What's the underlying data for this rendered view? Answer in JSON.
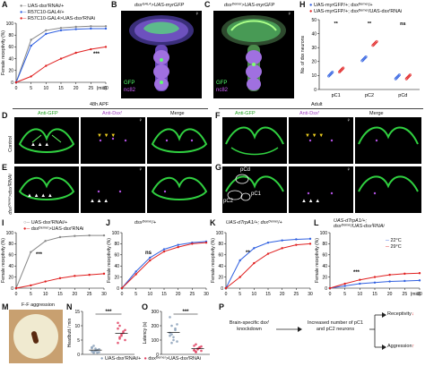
{
  "panels": {
    "A": {
      "letter": "A",
      "legend": [
        "UAS-dsxᶠRNAi/+",
        "R57C10-GAL4/+",
        "R57C10-GAL4>UAS-dsxᶠRNAi"
      ],
      "ylabel": "Female receptivity (%)",
      "xunit": "(min)",
      "sig": "***"
    },
    "B": {
      "letter": "B",
      "title": "dsxᴳᴬᴸ⁴>UAS-myrGFP",
      "sex": "♀",
      "ch1": "GFP",
      "ch2": "nc82"
    },
    "C": {
      "letter": "C",
      "title": "dsxᴰᵉᵐᵉʳ>UAS-myrGFP",
      "sex": "♀",
      "ch1": "GFP",
      "ch2": "nc82"
    },
    "H": {
      "letter": "H",
      "legend": [
        "UAS-myrGFP/+; dsxᴰᵉᵐᵉʳ/+",
        "UAS-myrGFP/+; dsxᴰᵉᵐᵉʳ/UAS-dsxᶠRNAi"
      ],
      "ylabel": "No. of dsx neurons",
      "sigs": [
        "**",
        "**",
        "ns"
      ]
    },
    "D": {
      "letter": "D",
      "rowlabel": "Control",
      "sex": "♀"
    },
    "E": {
      "letter": "E",
      "rowlabel": "dsxᴰᵉᵐᵉʳ>dsxᶠRNAi",
      "sex": "♀"
    },
    "F": {
      "letter": "F",
      "sex": "♀"
    },
    "G": {
      "letter": "G",
      "sex": "♀",
      "labels": [
        "pCd",
        "pC2",
        "pC1"
      ]
    },
    "headers": {
      "left_stage": "48h APF",
      "right_stage": "Adult",
      "col1": "Anti-GFP",
      "col2": "Anti-Dsxᶠ",
      "col3": "Merge"
    },
    "I": {
      "letter": "I",
      "legend": [
        "UAS-dsxᶠRNAi/+",
        "dsxᴰᵉᵐᵉʳ>UAS-dsxᶠRNAi"
      ],
      "ylabel": "Female receptivity (%)",
      "sig": "***"
    },
    "J": {
      "letter": "J",
      "title": "dsxᴰᵉᵐᵉʳ/+",
      "ylabel": "Female receptivity (%)",
      "sig": "ns"
    },
    "K": {
      "letter": "K",
      "title": "UAS-dTrpA1/+; dsxᴰᵉᵐᵉʳ/+",
      "ylabel": "Female receptivity (%)",
      "sig": "**"
    },
    "L": {
      "letter": "L",
      "title1": "UAS-dTrpA1/+;",
      "title2": "dsxᴰᵉᵐᵉʳ/UAS-dsxᶠRNAi",
      "ylabel": "Female receptivity (%)",
      "sig": "***",
      "legend": [
        "22°C",
        "29°C"
      ],
      "xunit": "(min)"
    },
    "M": {
      "letter": "M",
      "title": "F-F aggression"
    },
    "N": {
      "letter": "N",
      "ylabel": "Headbutt / min",
      "sig": "***"
    },
    "O": {
      "letter": "O",
      "ylabel": "Latency (s)",
      "sig": "***"
    },
    "NO_legend": [
      "UAS-dsxᶠRNAi/+",
      "dsxᴰᵉᵐᵉʳ>UAS-dsxᶠRNAi"
    ],
    "P": {
      "letter": "P",
      "box1": "Brain-specific dsxᶠ knockdown",
      "box2": "Increased number of pC1 and pC2 neurons",
      "out1": "Receptivity",
      "out2": "Aggression",
      "arrow_glyph": "↓"
    }
  },
  "chart_data": [
    {
      "id": "A",
      "type": "line",
      "x": [
        0,
        5,
        10,
        15,
        20,
        25,
        30
      ],
      "xticks": [
        0,
        5,
        10,
        15,
        20,
        25,
        30
      ],
      "yticks": [
        0,
        20,
        40,
        60,
        80,
        100
      ],
      "ylim": [
        0,
        100
      ],
      "series": [
        {
          "name": "UAS-dsxᶠRNAi/+",
          "color": "#888888",
          "values": [
            0,
            72,
            88,
            92,
            94,
            95,
            95
          ]
        },
        {
          "name": "R57C10-GAL4/+",
          "color": "#3060e0",
          "values": [
            0,
            62,
            82,
            88,
            90,
            91,
            91
          ]
        },
        {
          "name": "R57C10-GAL4>UAS-dsxᶠRNAi",
          "color": "#e02020",
          "values": [
            0,
            10,
            28,
            40,
            50,
            56,
            60
          ]
        }
      ]
    },
    {
      "id": "H",
      "type": "scatter",
      "categories": [
        "pC1",
        "pC2",
        "pCd"
      ],
      "yticks": [
        0,
        10,
        20,
        30,
        40,
        50
      ],
      "ylim": [
        0,
        50
      ],
      "series": [
        {
          "name": "UAS-myrGFP/+; dsxᴰᵉᵐᵉʳ/+",
          "color": "#3060e0",
          "values": [
            11,
            22,
            9
          ]
        },
        {
          "name": "UAS-myrGFP/+; dsxᴰᵉᵐᵉʳ/UAS-dsxᶠRNAi",
          "color": "#e02020",
          "values": [
            14,
            33,
            9
          ]
        }
      ]
    },
    {
      "id": "I",
      "type": "line",
      "x": [
        0,
        5,
        10,
        15,
        20,
        25,
        30
      ],
      "xticks": [
        0,
        5,
        10,
        15,
        20,
        25,
        30
      ],
      "yticks": [
        0,
        20,
        40,
        60,
        80,
        100
      ],
      "ylim": [
        0,
        100
      ],
      "series": [
        {
          "name": "UAS-dsxᶠRNAi/+",
          "color": "#888888",
          "values": [
            0,
            65,
            85,
            92,
            94,
            95,
            95
          ]
        },
        {
          "name": "dsxᴰᵉᵐᵉʳ>UAS-dsxᶠRNAi",
          "color": "#e02020",
          "values": [
            0,
            5,
            12,
            18,
            22,
            24,
            26
          ]
        }
      ]
    },
    {
      "id": "J",
      "type": "line",
      "x": [
        0,
        5,
        10,
        15,
        20,
        25,
        30
      ],
      "xticks": [
        0,
        5,
        10,
        15,
        20,
        25,
        30
      ],
      "yticks": [
        0,
        20,
        40,
        60,
        80,
        100
      ],
      "ylim": [
        0,
        100
      ],
      "series": [
        {
          "name": "22°C",
          "color": "#3060e0",
          "values": [
            0,
            30,
            55,
            70,
            78,
            82,
            84
          ]
        },
        {
          "name": "29°C",
          "color": "#e02020",
          "values": [
            0,
            25,
            50,
            66,
            74,
            80,
            82
          ]
        }
      ]
    },
    {
      "id": "K",
      "type": "line",
      "x": [
        0,
        5,
        10,
        15,
        20,
        25,
        30
      ],
      "xticks": [
        0,
        5,
        10,
        15,
        20,
        25,
        30
      ],
      "yticks": [
        0,
        20,
        40,
        60,
        80,
        100
      ],
      "ylim": [
        0,
        100
      ],
      "series": [
        {
          "name": "22°C",
          "color": "#3060e0",
          "values": [
            0,
            50,
            72,
            82,
            86,
            88,
            89
          ]
        },
        {
          "name": "29°C",
          "color": "#e02020",
          "values": [
            0,
            20,
            45,
            62,
            72,
            78,
            80
          ]
        }
      ]
    },
    {
      "id": "L",
      "type": "line",
      "x": [
        0,
        5,
        10,
        15,
        20,
        25,
        30
      ],
      "xticks": [
        0,
        5,
        10,
        15,
        20,
        25,
        30
      ],
      "yticks": [
        0,
        20,
        40,
        60,
        80,
        100
      ],
      "ylim": [
        0,
        100
      ],
      "series": [
        {
          "name": "22°C",
          "color": "#3060e0",
          "values": [
            0,
            4,
            8,
            10,
            12,
            13,
            14
          ]
        },
        {
          "name": "29°C",
          "color": "#e02020",
          "values": [
            0,
            8,
            15,
            20,
            24,
            26,
            27
          ]
        }
      ]
    },
    {
      "id": "N",
      "type": "scatter",
      "categories": [
        "UAS-dsxᶠRNAi/+",
        "dsxᴰᵉᵐᵉʳ>UAS-dsxᶠRNAi"
      ],
      "yticks": [
        0,
        5,
        10,
        15
      ],
      "ylim": [
        0,
        15
      ],
      "series": [
        {
          "name": "UAS-dsxᶠRNAi/+",
          "color": "#8aa0b8",
          "values": [
            1,
            0.5,
            2,
            1.5,
            0.8,
            2.5,
            3,
            1.2,
            0.6,
            1.8,
            2.2,
            0.9
          ]
        },
        {
          "name": "dsxᴰᵉᵐᵉʳ>UAS-dsxᶠRNAi",
          "color": "#e04060",
          "values": [
            4,
            6,
            7,
            8,
            5,
            9,
            10,
            6.5,
            7.5,
            8.5,
            11,
            5.5
          ]
        }
      ]
    },
    {
      "id": "O",
      "type": "scatter",
      "categories": [
        "UAS-dsxᶠRNAi/+",
        "dsxᴰᵉᵐᵉʳ>UAS-dsxᶠRNAi"
      ],
      "yticks": [
        0,
        100,
        200,
        300
      ],
      "ylim": [
        0,
        300
      ],
      "series": [
        {
          "name": "UAS-dsxᶠRNAi/+",
          "color": "#8aa0b8",
          "values": [
            150,
            200,
            120,
            180,
            90,
            260,
            140,
            100,
            170,
            210,
            130,
            80
          ]
        },
        {
          "name": "dsxᴰᵉᵐᵉʳ>UAS-dsxᶠRNAi",
          "color": "#e04060",
          "values": [
            30,
            20,
            40,
            50,
            25,
            60,
            15,
            35,
            45,
            55,
            28,
            70
          ]
        }
      ]
    }
  ]
}
